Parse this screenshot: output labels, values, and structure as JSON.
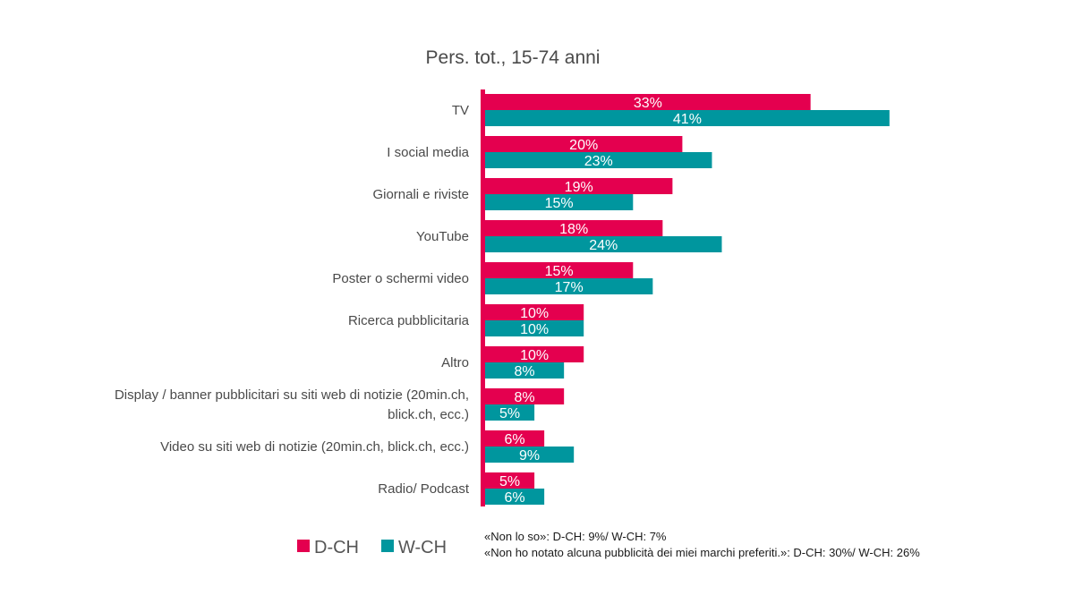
{
  "chart_data": {
    "type": "bar",
    "orientation": "horizontal",
    "title": "Pers. tot., 15-74 anni",
    "categories": [
      [
        "TV"
      ],
      [
        "I social media"
      ],
      [
        "Giornali e riviste"
      ],
      [
        "YouTube"
      ],
      [
        "Poster o schermi video"
      ],
      [
        "Ricerca pubblicitaria"
      ],
      [
        "Altro"
      ],
      [
        "Display / banner pubblicitari su siti web di notizie (20min.ch,",
        "blick.ch, ecc.)"
      ],
      [
        "Video su siti web di notizie (20min.ch, blick.ch, ecc.)"
      ],
      [
        "Radio/ Podcast"
      ]
    ],
    "series": [
      {
        "name": "D-CH",
        "color": "#e4004f",
        "values": [
          33,
          20,
          19,
          18,
          15,
          10,
          10,
          8,
          6,
          5
        ]
      },
      {
        "name": "W-CH",
        "color": "#00969e",
        "values": [
          41,
          23,
          15,
          24,
          17,
          10,
          8,
          5,
          9,
          6
        ]
      }
    ],
    "value_suffix": "%",
    "xlim": [
      0,
      45
    ],
    "axis_color": "#e4004f",
    "grid": false,
    "legend_position": "bottom-left"
  },
  "notes": [
    "«Non lo so»: D-CH: 9%/ W-CH: 7%",
    "«Non ho notato alcuna pubblicità dei miei marchi preferiti.»: D-CH: 30%/ W-CH: 26%"
  ]
}
